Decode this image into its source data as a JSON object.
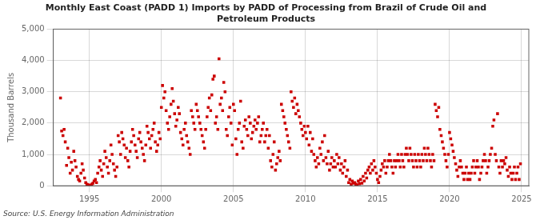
{
  "chart_data": {
    "type": "scatter",
    "title": "Monthly East Coast (PADD 1) Imports by PADD of Processing from Brazil of Crude Oil and\nPetroleum Products",
    "ylabel": "Thousand Barrels",
    "annotations": [
      "Source: U.S. Energy Information Administration"
    ],
    "color": "#cc0000",
    "marker": "square",
    "grid": true,
    "xlim": [
      1992.5,
      2025.5
    ],
    "xticks": [
      1995,
      2000,
      2005,
      2010,
      2015,
      2020,
      2025
    ],
    "ylim": [
      0,
      5000
    ],
    "yticks": [
      0,
      {
        "value": 1000,
        "label": "1,000"
      },
      {
        "value": 2000,
        "label": "2,000"
      },
      {
        "value": 3000,
        "label": "3,000"
      },
      {
        "value": 4000,
        "label": "4,000"
      },
      {
        "value": 5000,
        "label": "5,000"
      }
    ],
    "x": [
      1993.0,
      1993.08,
      1993.17,
      1993.25,
      1993.33,
      1993.42,
      1993.5,
      1993.58,
      1993.67,
      1993.75,
      1993.83,
      1993.92,
      1994.0,
      1994.08,
      1994.17,
      1994.25,
      1994.33,
      1994.42,
      1994.5,
      1994.58,
      1994.67,
      1994.75,
      1994.83,
      1994.92,
      1995.0,
      1995.08,
      1995.17,
      1995.25,
      1995.33,
      1995.42,
      1995.5,
      1995.58,
      1995.67,
      1995.75,
      1995.83,
      1995.92,
      1996.0,
      1996.08,
      1996.17,
      1996.25,
      1996.33,
      1996.42,
      1996.5,
      1996.58,
      1996.67,
      1996.75,
      1996.83,
      1996.92,
      1997.0,
      1997.08,
      1997.17,
      1997.25,
      1997.33,
      1997.42,
      1997.5,
      1997.58,
      1997.67,
      1997.75,
      1997.83,
      1997.92,
      1998.0,
      1998.08,
      1998.17,
      1998.25,
      1998.33,
      1998.42,
      1998.5,
      1998.58,
      1998.67,
      1998.75,
      1998.83,
      1998.92,
      1999.0,
      1999.08,
      1999.17,
      1999.25,
      1999.33,
      1999.42,
      1999.5,
      1999.58,
      1999.67,
      1999.75,
      1999.83,
      1999.92,
      2000.0,
      2000.08,
      2000.17,
      2000.25,
      2000.33,
      2000.42,
      2000.5,
      2000.58,
      2000.67,
      2000.75,
      2000.83,
      2000.92,
      2001.0,
      2001.08,
      2001.17,
      2001.25,
      2001.33,
      2001.42,
      2001.5,
      2001.58,
      2001.67,
      2001.75,
      2001.83,
      2001.92,
      2002.0,
      2002.08,
      2002.17,
      2002.25,
      2002.33,
      2002.42,
      2002.5,
      2002.58,
      2002.67,
      2002.75,
      2002.83,
      2002.92,
      2003.0,
      2003.08,
      2003.17,
      2003.25,
      2003.33,
      2003.42,
      2003.5,
      2003.58,
      2003.67,
      2003.75,
      2003.83,
      2003.92,
      2004.0,
      2004.08,
      2004.17,
      2004.25,
      2004.33,
      2004.42,
      2004.5,
      2004.58,
      2004.67,
      2004.75,
      2004.83,
      2004.92,
      2005.0,
      2005.08,
      2005.17,
      2005.25,
      2005.33,
      2005.42,
      2005.5,
      2005.58,
      2005.67,
      2005.75,
      2005.83,
      2005.92,
      2006.0,
      2006.08,
      2006.17,
      2006.25,
      2006.33,
      2006.42,
      2006.5,
      2006.58,
      2006.67,
      2006.75,
      2006.83,
      2006.92,
      2007.0,
      2007.08,
      2007.17,
      2007.25,
      2007.33,
      2007.42,
      2007.5,
      2007.58,
      2007.67,
      2007.75,
      2007.83,
      2007.92,
      2008.0,
      2008.08,
      2008.17,
      2008.25,
      2008.33,
      2008.42,
      2008.5,
      2008.58,
      2008.67,
      2008.75,
      2008.83,
      2008.92,
      2009.0,
      2009.08,
      2009.17,
      2009.25,
      2009.33,
      2009.42,
      2009.5,
      2009.58,
      2009.67,
      2009.75,
      2009.83,
      2009.92,
      2010.0,
      2010.08,
      2010.17,
      2010.25,
      2010.33,
      2010.42,
      2010.5,
      2010.58,
      2010.67,
      2010.75,
      2010.83,
      2010.92,
      2011.0,
      2011.08,
      2011.17,
      2011.25,
      2011.33,
      2011.42,
      2011.5,
      2011.58,
      2011.67,
      2011.75,
      2011.83,
      2011.92,
      2012.0,
      2012.08,
      2012.17,
      2012.25,
      2012.33,
      2012.42,
      2012.5,
      2012.58,
      2012.67,
      2012.75,
      2012.83,
      2012.92,
      2013.0,
      2013.08,
      2013.17,
      2013.25,
      2013.33,
      2013.42,
      2013.5,
      2013.58,
      2013.67,
      2013.75,
      2013.83,
      2013.92,
      2014.0,
      2014.08,
      2014.17,
      2014.25,
      2014.33,
      2014.42,
      2014.5,
      2014.58,
      2014.67,
      2014.75,
      2014.83,
      2014.92,
      2015.0,
      2015.08,
      2015.17,
      2015.25,
      2015.33,
      2015.42,
      2015.5,
      2015.58,
      2015.67,
      2015.75,
      2015.83,
      2015.92,
      2016.0,
      2016.08,
      2016.17,
      2016.25,
      2016.33,
      2016.42,
      2016.5,
      2016.58,
      2016.67,
      2016.75,
      2016.83,
      2016.92,
      2017.0,
      2017.08,
      2017.17,
      2017.25,
      2017.33,
      2017.42,
      2017.5,
      2017.58,
      2017.67,
      2017.75,
      2017.83,
      2017.92,
      2018.0,
      2018.08,
      2018.17,
      2018.25,
      2018.33,
      2018.42,
      2018.5,
      2018.58,
      2018.67,
      2018.75,
      2018.83,
      2018.92,
      2019.0,
      2019.08,
      2019.17,
      2019.25,
      2019.33,
      2019.42,
      2019.5,
      2019.58,
      2019.67,
      2019.75,
      2019.83,
      2019.92,
      2020.0,
      2020.08,
      2020.17,
      2020.25,
      2020.33,
      2020.42,
      2020.5,
      2020.58,
      2020.67,
      2020.75,
      2020.83,
      2020.92,
      2021.0,
      2021.08,
      2021.17,
      2021.25,
      2021.33,
      2021.42,
      2021.5,
      2021.58,
      2021.67,
      2021.75,
      2021.83,
      2021.92,
      2022.0,
      2022.08,
      2022.17,
      2022.25,
      2022.33,
      2022.42,
      2022.5,
      2022.58,
      2022.67,
      2022.75,
      2022.83,
      2022.92,
      2023.0,
      2023.08,
      2023.17,
      2023.25,
      2023.33,
      2023.42,
      2023.5,
      2023.58,
      2023.67,
      2023.75,
      2023.83,
      2023.92,
      2024.0,
      2024.08,
      2024.17,
      2024.25,
      2024.33,
      2024.42,
      2024.5,
      2024.58,
      2024.67,
      2024.75,
      2024.83,
      2024.92
    ],
    "values": [
      2800,
      1750,
      1600,
      1800,
      1400,
      650,
      1200,
      900,
      400,
      750,
      500,
      1100,
      800,
      600,
      300,
      200,
      150,
      400,
      700,
      500,
      250,
      100,
      50,
      30,
      20,
      10,
      50,
      80,
      150,
      200,
      100,
      400,
      600,
      800,
      500,
      300,
      700,
      1100,
      900,
      600,
      400,
      800,
      1300,
      1000,
      700,
      500,
      300,
      600,
      1600,
      1400,
      1000,
      1700,
      1500,
      1300,
      900,
      1200,
      800,
      600,
      1100,
      1400,
      1800,
      1600,
      1300,
      1100,
      900,
      1500,
      1700,
      1400,
      1200,
      1000,
      800,
      1300,
      1900,
      1700,
      1500,
      1200,
      1600,
      1800,
      2000,
      1400,
      1100,
      1300,
      1700,
      1500,
      2500,
      3200,
      2800,
      3000,
      2400,
      2000,
      1800,
      2200,
      2600,
      3100,
      2700,
      2300,
      1900,
      2100,
      2500,
      2300,
      1700,
      1500,
      1300,
      1800,
      2000,
      1600,
      1400,
      1200,
      1000,
      2400,
      2200,
      2000,
      1800,
      2600,
      2400,
      2200,
      2000,
      1800,
      1600,
      1400,
      1200,
      1800,
      2200,
      2500,
      2800,
      2400,
      2900,
      3400,
      3500,
      2000,
      2200,
      1800,
      4050,
      2600,
      2800,
      2400,
      3300,
      3000,
      1800,
      1600,
      2200,
      2500,
      2000,
      1300,
      2600,
      2400,
      1500,
      1000,
      1800,
      2000,
      2700,
      1400,
      1200,
      1900,
      2100,
      1800,
      1600,
      2200,
      2000,
      1500,
      1700,
      1900,
      2100,
      1800,
      2000,
      2200,
      1400,
      1600,
      1800,
      2000,
      1400,
      1600,
      1800,
      1200,
      1600,
      800,
      600,
      1000,
      1400,
      500,
      700,
      900,
      1100,
      800,
      2600,
      2400,
      2200,
      2000,
      1800,
      1600,
      1400,
      1200,
      3000,
      2700,
      2500,
      2800,
      2300,
      2600,
      2400,
      2200,
      2000,
      1800,
      1600,
      1900,
      1700,
      1500,
      1900,
      1300,
      1700,
      1100,
      1500,
      1000,
      800,
      600,
      900,
      700,
      1200,
      1000,
      1400,
      800,
      1600,
      900,
      700,
      1100,
      500,
      700,
      900,
      600,
      800,
      600,
      1000,
      700,
      900,
      500,
      700,
      400,
      600,
      800,
      300,
      500,
      100,
      200,
      50,
      150,
      80,
      100,
      50,
      30,
      150,
      60,
      200,
      80,
      300,
      150,
      400,
      250,
      500,
      600,
      400,
      700,
      500,
      800,
      600,
      400,
      200,
      100,
      300,
      500,
      700,
      600,
      800,
      400,
      600,
      800,
      1000,
      800,
      600,
      400,
      800,
      600,
      800,
      1000,
      800,
      600,
      1000,
      800,
      600,
      1000,
      1200,
      1000,
      800,
      1200,
      1000,
      800,
      600,
      1000,
      800,
      600,
      1000,
      800,
      600,
      1000,
      800,
      1200,
      1000,
      800,
      1200,
      1000,
      800,
      600,
      1000,
      800,
      2600,
      2400,
      2200,
      2500,
      1800,
      1600,
      1400,
      1200,
      1000,
      800,
      600,
      1000,
      1700,
      1500,
      1300,
      1100,
      900,
      700,
      500,
      300,
      600,
      800,
      600,
      400,
      200,
      400,
      600,
      200,
      400,
      200,
      400,
      600,
      800,
      400,
      600,
      800,
      600,
      200,
      400,
      600,
      800,
      1000,
      800,
      400,
      600,
      800,
      1000,
      1200,
      1900,
      2100,
      1000,
      800,
      2300,
      600,
      400,
      800,
      600,
      800,
      700,
      900,
      500,
      300,
      600,
      400,
      200,
      400,
      600,
      200,
      400,
      600,
      200,
      700
    ]
  }
}
